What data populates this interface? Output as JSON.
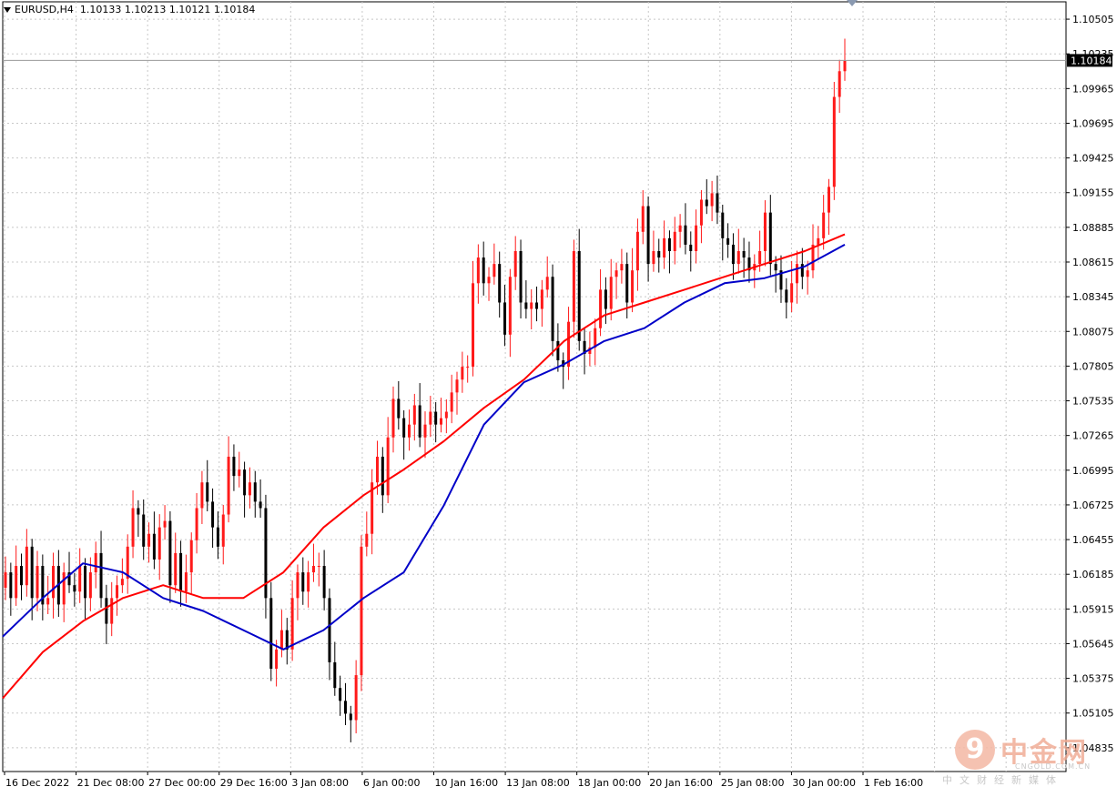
{
  "header": {
    "symbol": "EURUSD,H4",
    "ohlc": "1.10133 1.10213 1.10121 1.10184"
  },
  "watermark": {
    "name": "中金网",
    "url": "CNGOLD.COM.CN",
    "subtitle": "中文财经新媒体"
  },
  "colors": {
    "background": "#ffffff",
    "grid": "#c8c8c8",
    "bull": "#ff1a1a",
    "bear": "#000000",
    "ma_fast": "#0000c8",
    "ma_slow": "#ff0000"
  },
  "chart_data": {
    "type": "candlestick",
    "symbol": "EURUSD",
    "timeframe": "H4",
    "current_price": "1.10184",
    "ylim": [
      1.0465,
      1.1064
    ],
    "y_ticks": [
      "1.10505",
      "1.10235",
      "1.09965",
      "1.09695",
      "1.09425",
      "1.09155",
      "1.08885",
      "1.08615",
      "1.08345",
      "1.08075",
      "1.07805",
      "1.07535",
      "1.07265",
      "1.06995",
      "1.06725",
      "1.06455",
      "1.06185",
      "1.05915",
      "1.05645",
      "1.05375",
      "1.05105",
      "1.04835"
    ],
    "x_ticks": [
      "16 Dec 2022",
      "21 Dec 08:00",
      "27 Dec 00:00",
      "29 Dec 16:00",
      "3 Jan 08:00",
      "6 Jan 00:00",
      "10 Jan 16:00",
      "13 Jan 08:00",
      "18 Jan 00:00",
      "20 Jan 16:00",
      "25 Jan 08:00",
      "30 Jan 00:00",
      "1 Feb 16:00"
    ],
    "closes": [
      1.062,
      1.06,
      1.0625,
      1.061,
      1.064,
      1.06,
      1.0625,
      1.0595,
      1.06,
      1.0625,
      1.0595,
      1.062,
      1.061,
      1.0605,
      1.0625,
      1.06,
      1.062,
      1.0635,
      1.06,
      1.058,
      1.06,
      1.061,
      1.0615,
      1.064,
      1.067,
      1.0665,
      1.064,
      1.065,
      1.063,
      1.0655,
      1.066,
      1.061,
      1.0635,
      1.0605,
      1.062,
      1.0645,
      1.067,
      1.069,
      1.0675,
      1.0655,
      1.064,
      1.0665,
      1.071,
      1.0695,
      1.07,
      1.068,
      1.069,
      1.0675,
      1.067,
      1.06,
      1.0545,
      1.056,
      1.0575,
      1.056,
      1.06,
      1.062,
      1.0605,
      1.062,
      1.0625,
      1.0625,
      1.06,
      1.055,
      1.053,
      1.052,
      1.051,
      1.0505,
      1.054,
      1.064,
      1.065,
      1.069,
      1.071,
      1.068,
      1.0725,
      1.0755,
      1.074,
      1.0725,
      1.0735,
      1.075,
      1.0725,
      1.0735,
      1.0745,
      1.0735,
      1.074,
      1.0745,
      1.076,
      1.077,
      1.078,
      1.078,
      1.0845,
      1.0865,
      1.0845,
      1.085,
      1.086,
      1.083,
      1.0805,
      1.085,
      1.087,
      1.083,
      1.0825,
      1.083,
      1.0825,
      1.084,
      1.085,
      1.08,
      1.0785,
      1.078,
      1.0815,
      1.087,
      1.08,
      1.079,
      1.0795,
      1.081,
      1.084,
      1.0825,
      1.085,
      1.0855,
      1.086,
      1.083,
      1.0855,
      1.0885,
      1.0905,
      1.086,
      1.087,
      1.0865,
      1.088,
      1.087,
      1.0885,
      1.089,
      1.0875,
      1.087,
      1.089,
      1.091,
      1.0905,
      1.0915,
      1.09,
      1.088,
      1.0875,
      1.086,
      1.087,
      1.0865,
      1.0855,
      1.086,
      1.087,
      1.09,
      1.086,
      1.0855,
      1.084,
      1.083,
      1.0845,
      1.086,
      1.085,
      1.0855,
      1.0875,
      1.088,
      1.09,
      1.092,
      1.099,
      1.101,
      1.1018
    ],
    "ma_fast": [
      1.057,
      1.06,
      1.0627,
      1.062,
      1.06,
      1.059,
      1.0575,
      1.056,
      1.0575,
      1.06,
      1.062,
      1.0672,
      1.0735,
      1.0768,
      1.0782,
      1.08,
      1.081,
      1.083,
      1.0845,
      1.0849,
      1.0858,
      1.0875
    ],
    "ma_slow": [
      1.0522,
      1.0558,
      1.0582,
      1.06,
      1.061,
      1.06,
      1.06,
      1.062,
      1.0655,
      1.068,
      1.07,
      1.0722,
      1.0748,
      1.077,
      1.08,
      1.082,
      1.083,
      1.084,
      1.085,
      1.086,
      1.087,
      1.0883
    ]
  }
}
